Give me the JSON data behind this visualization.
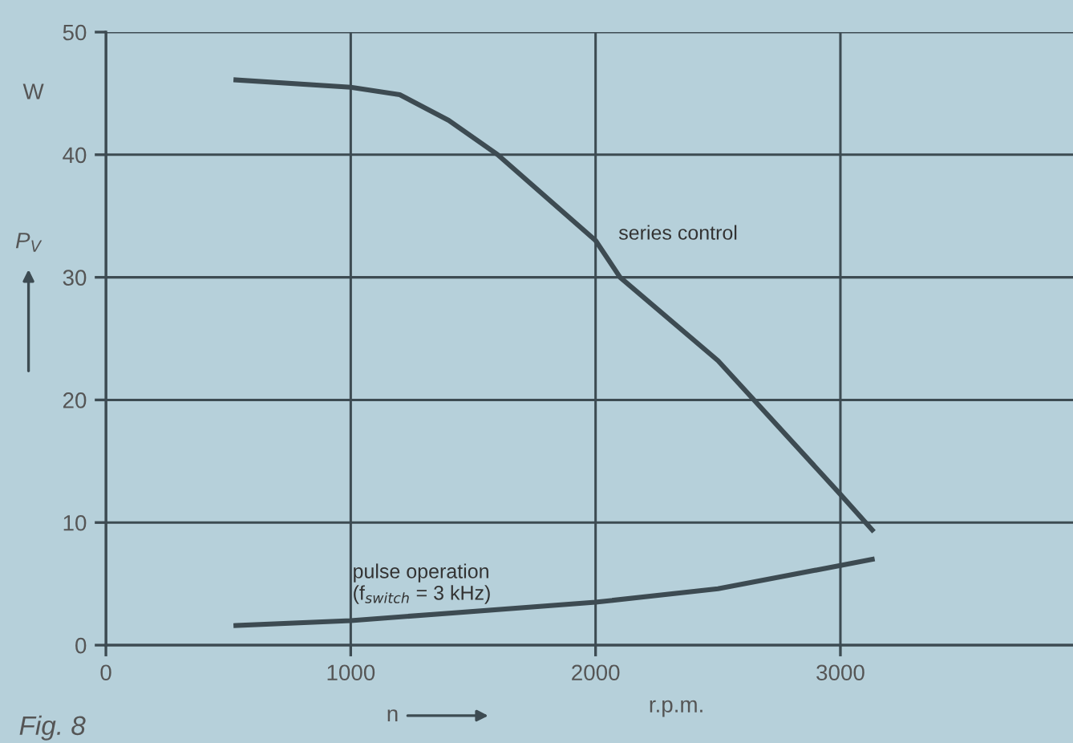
{
  "chart_data": {
    "type": "line",
    "xlabel": "n",
    "ylabel": "P$_{V}$",
    "xlim": [
      0,
      3950
    ],
    "ylim": [
      0,
      50
    ],
    "xticks": [
      0,
      1000,
      2000,
      3000
    ],
    "yticks": [
      0,
      10,
      20,
      30,
      40,
      50
    ],
    "grid": true,
    "marker": "none",
    "line_style": "solid",
    "series": [
      {
        "color": "#3d4b52",
        "x": [
          531,
          1000,
          1200,
          1400,
          1600,
          2000,
          2100,
          2500,
          3000,
          3130
        ],
        "values": [
          46.1,
          45.5,
          44.9,
          42.8,
          40,
          33,
          30,
          23.2,
          12.3,
          9.4
        ]
      },
      {
        "color": "#3d4b52",
        "x": [
          531,
          1000,
          2000,
          2500,
          3000,
          3130
        ],
        "values": [
          1.6,
          2.0,
          3.5,
          4.6,
          6.5,
          7.0
        ]
      }
    ],
    "annotations": [
      "series control",
      "pulse operation\n(f$_{switch}$ = 3 kHz)",
      "W",
      "r.p.m.",
      "Fig. 8"
    ]
  }
}
